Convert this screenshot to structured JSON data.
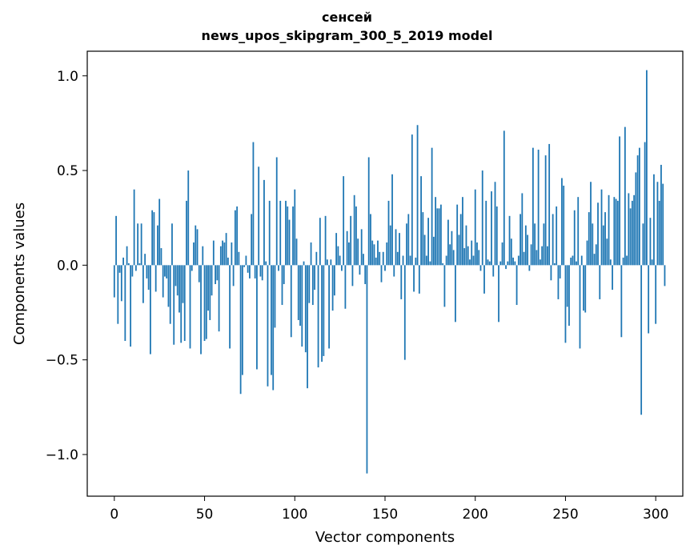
{
  "chart_data": {
    "type": "bar",
    "title_line1": "сенсей",
    "title_line2": "news_upos_skipgram_300_5_2019 model",
    "xlabel": "Vector components",
    "ylabel": "Components values",
    "xlim": [
      -15,
      315
    ],
    "ylim": [
      -1.22,
      1.13
    ],
    "xticks": [
      0,
      50,
      100,
      150,
      200,
      250,
      300
    ],
    "yticks": [
      -1.0,
      -0.5,
      0.0,
      0.5,
      1.0
    ],
    "xtick_labels": [
      "0",
      "50",
      "100",
      "150",
      "200",
      "250",
      "300"
    ],
    "ytick_labels": [
      "−1.0",
      "−0.5",
      "0.0",
      "0.5",
      "1.0"
    ],
    "bar_color": "#1f77b4",
    "values": [
      -0.17,
      0.26,
      -0.31,
      -0.04,
      -0.19,
      0.04,
      -0.4,
      0.1,
      0.01,
      -0.43,
      -0.06,
      0.4,
      -0.03,
      0.22,
      0.01,
      0.22,
      -0.2,
      0.06,
      -0.07,
      -0.13,
      -0.47,
      0.29,
      0.28,
      -0.14,
      0.21,
      0.35,
      0.09,
      -0.17,
      -0.06,
      -0.07,
      -0.22,
      -0.31,
      0.22,
      -0.42,
      -0.11,
      -0.16,
      -0.25,
      -0.41,
      -0.2,
      -0.4,
      0.34,
      0.5,
      -0.44,
      -0.03,
      0.12,
      0.21,
      0.19,
      -0.09,
      -0.47,
      0.1,
      -0.4,
      -0.39,
      -0.24,
      -0.29,
      -0.16,
      0.13,
      -0.1,
      -0.08,
      -0.35,
      0.1,
      0.13,
      0.12,
      0.17,
      0.04,
      -0.44,
      0.12,
      -0.11,
      0.29,
      0.31,
      0.07,
      -0.68,
      -0.58,
      -0.01,
      0.05,
      -0.04,
      -0.07,
      0.27,
      0.65,
      -0.07,
      -0.55,
      0.52,
      -0.06,
      -0.08,
      0.45,
      0.02,
      -0.64,
      0.34,
      -0.58,
      -0.66,
      -0.33,
      0.57,
      -0.03,
      0.34,
      -0.21,
      -0.1,
      0.34,
      0.31,
      0.24,
      -0.38,
      0.31,
      0.4,
      0.14,
      -0.29,
      -0.32,
      -0.43,
      0.02,
      -0.46,
      -0.65,
      -0.2,
      0.12,
      -0.21,
      -0.13,
      0.07,
      -0.54,
      0.25,
      -0.51,
      -0.48,
      0.26,
      0.03,
      -0.44,
      0.03,
      -0.24,
      -0.16,
      0.17,
      0.1,
      0.05,
      -0.03,
      0.47,
      -0.23,
      0.18,
      0.12,
      0.26,
      -0.11,
      0.37,
      0.31,
      0.14,
      -0.05,
      0.19,
      0.06,
      -0.1,
      -1.1,
      0.57,
      0.27,
      0.13,
      0.11,
      0.04,
      0.13,
      0.07,
      -0.09,
      0.07,
      -0.03,
      0.12,
      0.34,
      0.21,
      0.48,
      -0.06,
      0.19,
      0.07,
      0.17,
      -0.18,
      0.05,
      -0.5,
      0.22,
      0.27,
      0.05,
      0.69,
      -0.14,
      0.04,
      0.74,
      -0.15,
      0.47,
      0.28,
      0.16,
      0.05,
      0.25,
      0.02,
      0.62,
      0.15,
      0.36,
      0.3,
      0.3,
      0.32,
      0.01,
      -0.22,
      0.05,
      0.24,
      0.11,
      0.18,
      0.08,
      -0.3,
      0.32,
      0.16,
      0.27,
      0.36,
      0.09,
      0.21,
      0.1,
      0.03,
      0.13,
      0.05,
      0.4,
      0.12,
      0.08,
      -0.03,
      0.5,
      -0.15,
      0.34,
      0.03,
      0.02,
      0.39,
      -0.06,
      0.44,
      0.31,
      -0.3,
      0.02,
      0.12,
      0.71,
      -0.02,
      0.02,
      0.26,
      0.14,
      0.04,
      0.02,
      -0.21,
      0.05,
      0.27,
      0.38,
      0.07,
      0.21,
      0.16,
      -0.03,
      0.11,
      0.62,
      0.22,
      0.08,
      0.61,
      0.03,
      0.1,
      0.22,
      0.58,
      0.1,
      0.64,
      -0.08,
      0.27,
      0.01,
      0.31,
      -0.18,
      -0.07,
      0.46,
      0.42,
      -0.41,
      -0.22,
      -0.32,
      0.04,
      0.05,
      0.29,
      0.02,
      0.36,
      -0.44,
      0.05,
      -0.24,
      -0.25,
      0.13,
      0.28,
      0.44,
      0.22,
      0.06,
      0.11,
      0.33,
      -0.18,
      0.4,
      0.21,
      0.28,
      0.14,
      0.37,
      0.03,
      -0.13,
      0.36,
      0.35,
      0.34,
      0.68,
      -0.38,
      0.04,
      0.73,
      0.05,
      0.38,
      0.3,
      0.34,
      0.37,
      0.49,
      0.58,
      0.62,
      -0.79,
      0.22,
      0.65,
      1.03,
      -0.36,
      0.25,
      0.03,
      0.48,
      -0.31,
      0.44,
      0.34,
      0.53,
      0.43,
      -0.11
    ]
  }
}
